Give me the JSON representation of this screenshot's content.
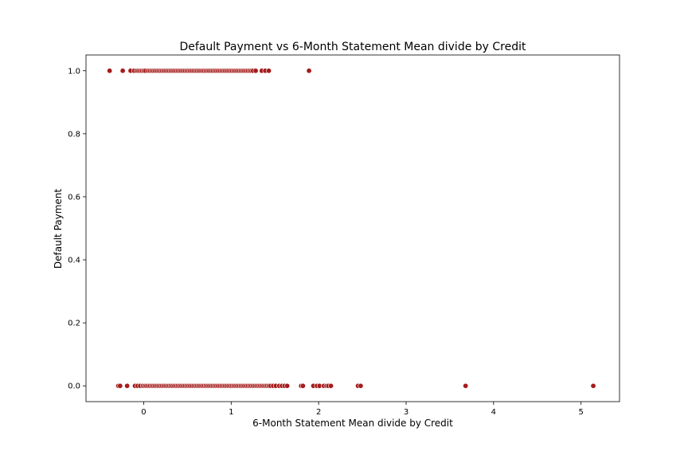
{
  "chart_data": {
    "type": "scatter",
    "title": "Default Payment vs 6-Month Statement Mean divide by Credit",
    "xlabel": "6-Month Statement Mean divide by Credit",
    "ylabel": "Default Payment",
    "xlim": [
      -0.66,
      5.44
    ],
    "ylim": [
      -0.05,
      1.05
    ],
    "x_ticks": [
      0,
      1,
      2,
      3,
      4,
      5
    ],
    "x_tick_labels": [
      "0",
      "1",
      "2",
      "3",
      "4",
      "5"
    ],
    "y_ticks": [
      0.0,
      0.2,
      0.4,
      0.6,
      0.8,
      1.0
    ],
    "y_tick_labels": [
      "0.0",
      "0.2",
      "0.4",
      "0.6",
      "0.8",
      "1.0"
    ],
    "grid": false,
    "marker_color": "#a51c1c",
    "marker_edge_color": "#ffffff",
    "series": [
      {
        "x": [
          -0.39,
          -0.24,
          -0.15,
          -0.11,
          -0.08,
          -0.06,
          -0.04,
          -0.02,
          0.0,
          0.02,
          0.05,
          0.07,
          0.09,
          0.11,
          0.13,
          0.15,
          0.17,
          0.19,
          0.21,
          0.23,
          0.25,
          0.27,
          0.29,
          0.31,
          0.33,
          0.35,
          0.37,
          0.39,
          0.41,
          0.43,
          0.45,
          0.47,
          0.49,
          0.51,
          0.53,
          0.55,
          0.57,
          0.59,
          0.61,
          0.63,
          0.65,
          0.67,
          0.69,
          0.71,
          0.73,
          0.75,
          0.77,
          0.79,
          0.81,
          0.83,
          0.85,
          0.87,
          0.89,
          0.91,
          0.93,
          0.95,
          0.97,
          0.99,
          1.01,
          1.03,
          1.05,
          1.07,
          1.09,
          1.11,
          1.13,
          1.15,
          1.17,
          1.19,
          1.21,
          1.23,
          1.25,
          1.28,
          1.35,
          1.39,
          1.43,
          1.89
        ],
        "y": [
          1,
          1,
          1,
          1,
          1,
          1,
          1,
          1,
          1,
          1,
          1,
          1,
          1,
          1,
          1,
          1,
          1,
          1,
          1,
          1,
          1,
          1,
          1,
          1,
          1,
          1,
          1,
          1,
          1,
          1,
          1,
          1,
          1,
          1,
          1,
          1,
          1,
          1,
          1,
          1,
          1,
          1,
          1,
          1,
          1,
          1,
          1,
          1,
          1,
          1,
          1,
          1,
          1,
          1,
          1,
          1,
          1,
          1,
          1,
          1,
          1,
          1,
          1,
          1,
          1,
          1,
          1,
          1,
          1,
          1,
          1,
          1,
          1,
          1,
          1,
          1
        ]
      },
      {
        "x": [
          -0.29,
          -0.27,
          -0.19,
          -0.1,
          -0.07,
          -0.04,
          -0.01,
          0.01,
          0.03,
          0.05,
          0.07,
          0.09,
          0.11,
          0.13,
          0.15,
          0.17,
          0.19,
          0.21,
          0.23,
          0.25,
          0.27,
          0.29,
          0.31,
          0.33,
          0.35,
          0.37,
          0.39,
          0.41,
          0.43,
          0.45,
          0.47,
          0.49,
          0.51,
          0.53,
          0.55,
          0.57,
          0.59,
          0.61,
          0.63,
          0.65,
          0.67,
          0.69,
          0.71,
          0.73,
          0.75,
          0.77,
          0.79,
          0.81,
          0.83,
          0.85,
          0.87,
          0.89,
          0.91,
          0.93,
          0.95,
          0.97,
          0.99,
          1.01,
          1.03,
          1.05,
          1.07,
          1.09,
          1.11,
          1.13,
          1.15,
          1.17,
          1.19,
          1.21,
          1.23,
          1.25,
          1.27,
          1.29,
          1.31,
          1.33,
          1.35,
          1.37,
          1.39,
          1.41,
          1.43,
          1.45,
          1.48,
          1.51,
          1.55,
          1.58,
          1.61,
          1.64,
          1.8,
          1.82,
          1.94,
          1.98,
          2.01,
          2.06,
          2.09,
          2.11,
          2.14,
          2.45,
          2.48,
          3.68,
          5.14
        ],
        "y": [
          0,
          0,
          0,
          0,
          0,
          0,
          0,
          0,
          0,
          0,
          0,
          0,
          0,
          0,
          0,
          0,
          0,
          0,
          0,
          0,
          0,
          0,
          0,
          0,
          0,
          0,
          0,
          0,
          0,
          0,
          0,
          0,
          0,
          0,
          0,
          0,
          0,
          0,
          0,
          0,
          0,
          0,
          0,
          0,
          0,
          0,
          0,
          0,
          0,
          0,
          0,
          0,
          0,
          0,
          0,
          0,
          0,
          0,
          0,
          0,
          0,
          0,
          0,
          0,
          0,
          0,
          0,
          0,
          0,
          0,
          0,
          0,
          0,
          0,
          0,
          0,
          0,
          0,
          0,
          0,
          0,
          0,
          0,
          0,
          0,
          0,
          0,
          0,
          0,
          0,
          0,
          0,
          0,
          0,
          0,
          0,
          0,
          0,
          0
        ]
      }
    ]
  }
}
